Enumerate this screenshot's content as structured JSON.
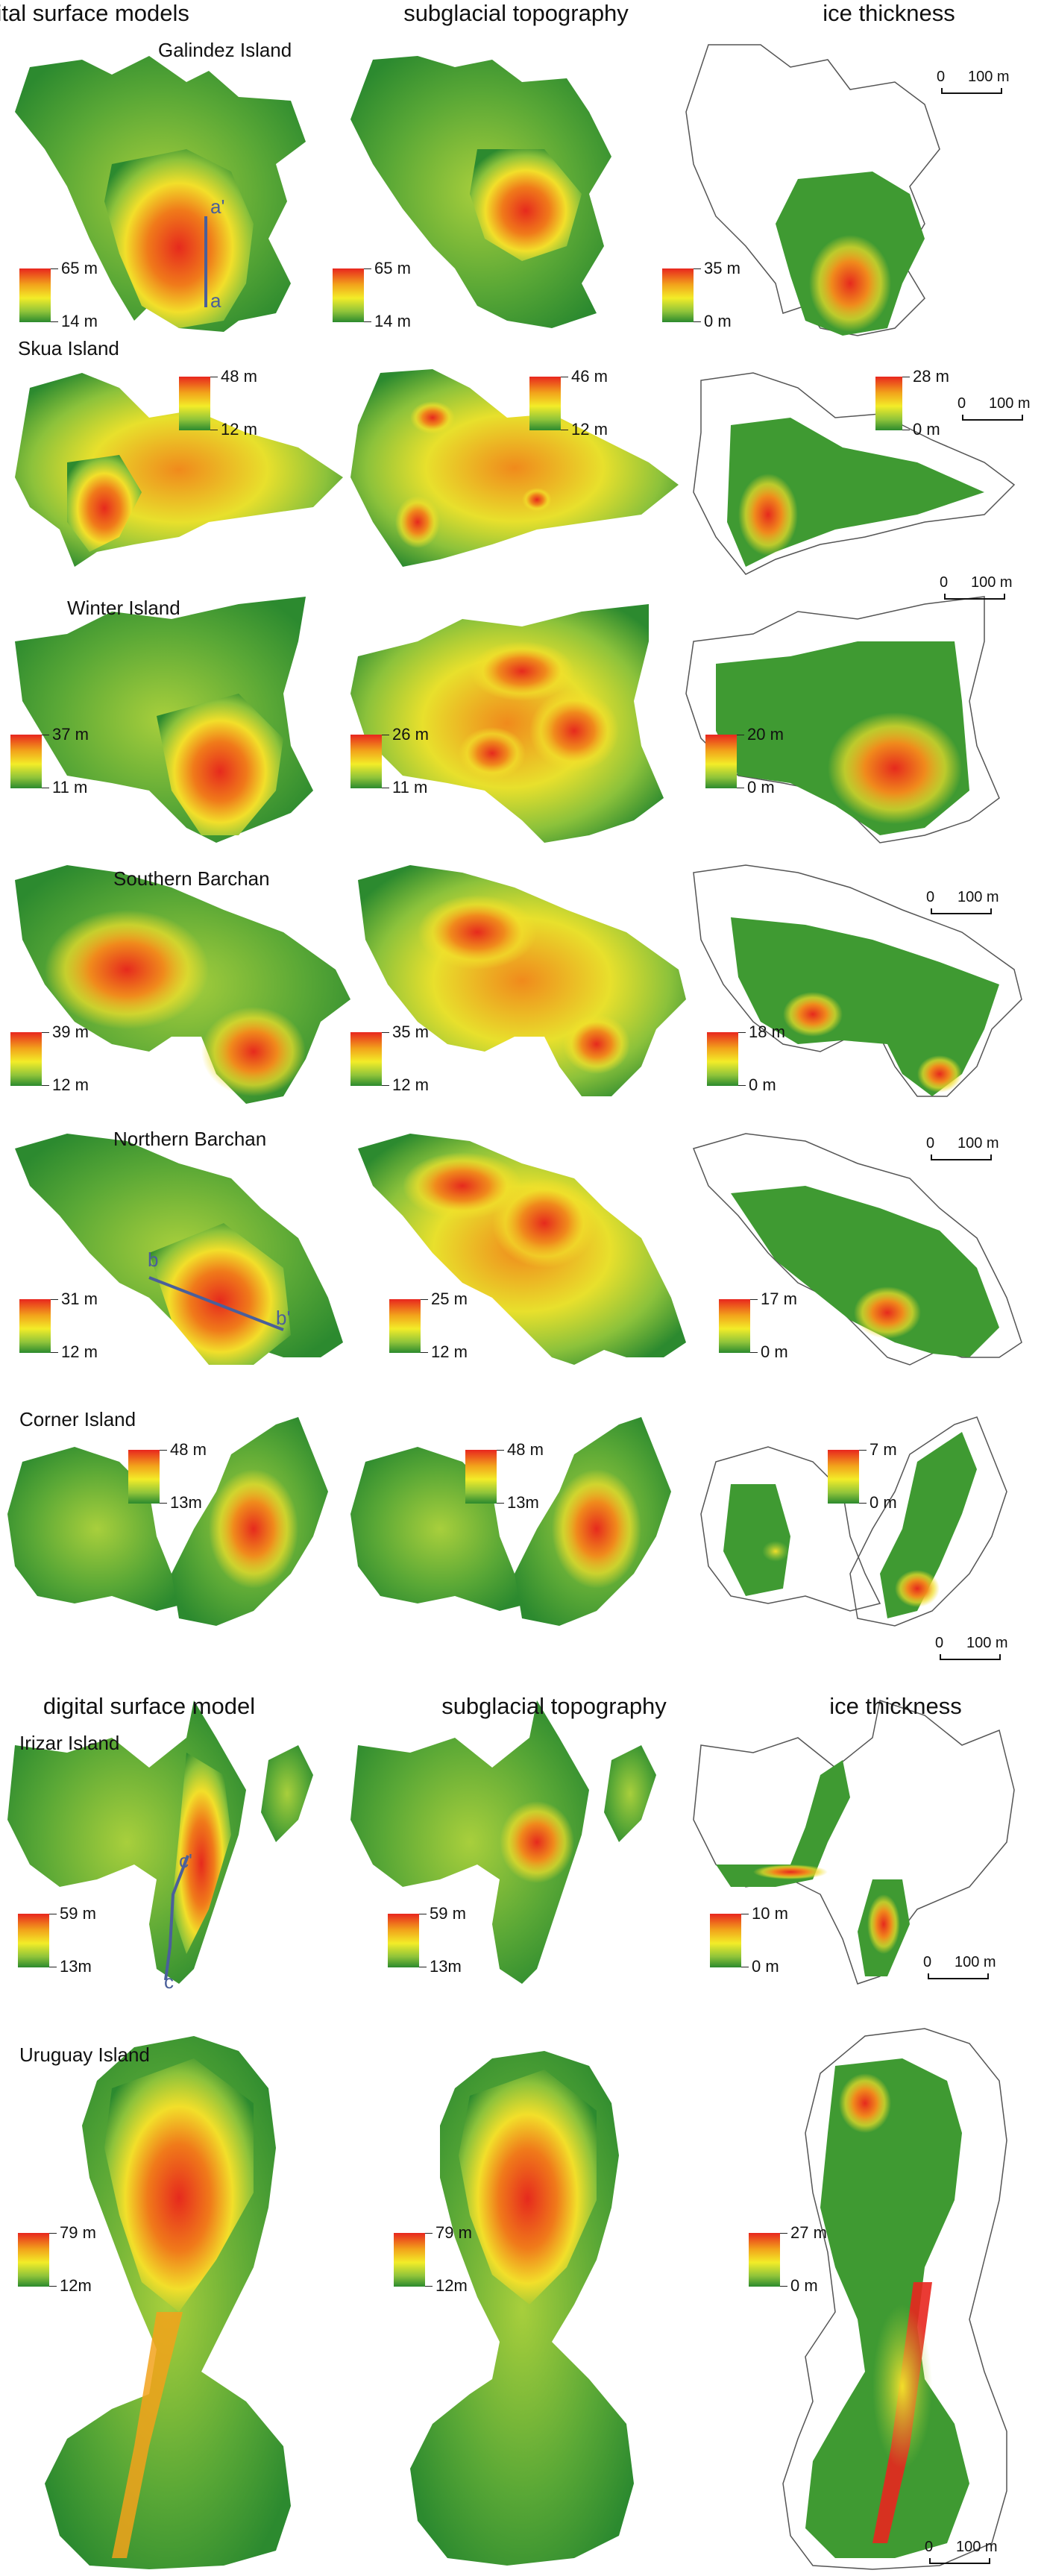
{
  "headers_top": {
    "col1": "digital surface models",
    "col2": "subglacial topography",
    "col3": "ice thickness"
  },
  "headers_bottom": {
    "col1": "digital surface model",
    "col2": "subglacial topography",
    "col3": "ice thickness"
  },
  "colors": {
    "high": "#e8261e",
    "mid_high": "#f2a21b",
    "mid": "#f3ec28",
    "mid_low": "#8fc43a",
    "low": "#2b8a2e",
    "outline": "#555555",
    "profile_line": "#4a5f9a"
  },
  "islands": [
    {
      "name": "Galindez Island",
      "legends": [
        {
          "max": "65 m",
          "min": "14 m"
        },
        {
          "max": "65 m",
          "min": "14 m"
        },
        {
          "max": "35 m",
          "min": "0 m"
        }
      ],
      "scalebar": {
        "zero": "0",
        "len": "100 m"
      },
      "profile": {
        "start": "a",
        "end": "a'"
      }
    },
    {
      "name": "Skua Island",
      "legends": [
        {
          "max": "48 m",
          "min": "12 m"
        },
        {
          "max": "46 m",
          "min": "12 m"
        },
        {
          "max": "28 m",
          "min": "0 m"
        }
      ],
      "scalebar": {
        "zero": "0",
        "len": "100 m"
      }
    },
    {
      "name": "Winter Island",
      "legends": [
        {
          "max": "37 m",
          "min": "11 m"
        },
        {
          "max": "26 m",
          "min": "11 m"
        },
        {
          "max": "20 m",
          "min": "0 m"
        }
      ],
      "scalebar": {
        "zero": "0",
        "len": "100 m"
      }
    },
    {
      "name": "Southern Barchan",
      "legends": [
        {
          "max": "39 m",
          "min": "12 m"
        },
        {
          "max": "35 m",
          "min": "12 m"
        },
        {
          "max": "18 m",
          "min": "0 m"
        }
      ],
      "scalebar": {
        "zero": "0",
        "len": "100 m"
      }
    },
    {
      "name": "Northern Barchan",
      "legends": [
        {
          "max": "31 m",
          "min": "12 m"
        },
        {
          "max": "25 m",
          "min": "12 m"
        },
        {
          "max": "17 m",
          "min": "0 m"
        }
      ],
      "scalebar": {
        "zero": "0",
        "len": "100 m"
      },
      "profile": {
        "start": "b",
        "end": "b'"
      }
    },
    {
      "name": "Corner Island",
      "legends": [
        {
          "max": "48 m",
          "min": "13m"
        },
        {
          "max": "48 m",
          "min": "13m"
        },
        {
          "max": "7 m",
          "min": "0 m"
        }
      ],
      "scalebar": {
        "zero": "0",
        "len": "100 m"
      }
    },
    {
      "name": "Irizar Island",
      "legends": [
        {
          "max": "59 m",
          "min": "13m"
        },
        {
          "max": "59 m",
          "min": "13m"
        },
        {
          "max": "10 m",
          "min": "0 m"
        }
      ],
      "scalebar": {
        "zero": "0",
        "len": "100 m"
      },
      "profile": {
        "start": "c",
        "end": "c'"
      }
    },
    {
      "name": "Uruguay Island",
      "legends": [
        {
          "max": "79 m",
          "min": "12m"
        },
        {
          "max": "79 m",
          "min": "12m"
        },
        {
          "max": "27 m",
          "min": "0 m"
        }
      ],
      "scalebar": {
        "zero": "0",
        "len": "100 m"
      }
    }
  ]
}
